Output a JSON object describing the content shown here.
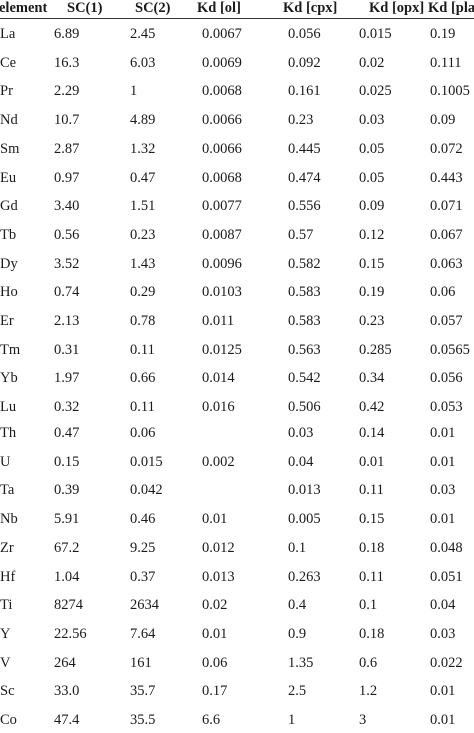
{
  "table": {
    "headers": [
      "element",
      "SC(1)",
      "SC(2)",
      "Kd [ol]",
      "Kd [cpx]",
      "Kd [opx]",
      "Kd [plag]"
    ],
    "group1": [
      [
        "La",
        "6.89",
        "2.45",
        "0.0067",
        "0.056",
        "0.015",
        "0.19"
      ],
      [
        "Ce",
        "16.3",
        "6.03",
        "0.0069",
        "0.092",
        "0.02",
        "0.111"
      ],
      [
        "Pr",
        "2.29",
        "1",
        "0.0068",
        "0.161",
        "0.025",
        "0.1005"
      ],
      [
        "Nd",
        "10.7",
        "4.89",
        "0.0066",
        "0.23",
        "0.03",
        "0.09"
      ],
      [
        "Sm",
        "2.87",
        "1.32",
        "0.0066",
        "0.445",
        "0.05",
        "0.072"
      ],
      [
        "Eu",
        "0.97",
        "0.47",
        "0.0068",
        "0.474",
        "0.05",
        "0.443"
      ],
      [
        "Gd",
        "3.40",
        "1.51",
        "0.0077",
        "0.556",
        "0.09",
        "0.071"
      ],
      [
        "Tb",
        "0.56",
        "0.23",
        "0.0087",
        "0.57",
        "0.12",
        "0.067"
      ],
      [
        "Dy",
        "3.52",
        "1.43",
        "0.0096",
        "0.582",
        "0.15",
        "0.063"
      ],
      [
        "Ho",
        "0.74",
        "0.29",
        "0.0103",
        "0.583",
        "0.19",
        "0.06"
      ],
      [
        "Er",
        "2.13",
        "0.78",
        "0.011",
        "0.583",
        "0.23",
        "0.057"
      ],
      [
        "Tm",
        "0.31",
        "0.11",
        "0.0125",
        "0.563",
        "0.285",
        "0.0565"
      ],
      [
        "Yb",
        "1.97",
        "0.66",
        "0.014",
        "0.542",
        "0.34",
        "0.056"
      ],
      [
        "Lu",
        "0.32",
        "0.11",
        "0.016",
        "0.506",
        "0.42",
        "0.053"
      ]
    ],
    "group2": [
      [
        "Th",
        "0.47",
        "0.06",
        "",
        "0.03",
        "0.14",
        "0.01"
      ],
      [
        "U",
        "0.15",
        "0.015",
        "0.002",
        "0.04",
        "0.01",
        "0.01"
      ],
      [
        "Ta",
        "0.39",
        "0.042",
        "",
        "0.013",
        "0.11",
        "0.03"
      ],
      [
        "Nb",
        "5.91",
        "0.46",
        "0.01",
        "0.005",
        "0.15",
        "0.01"
      ],
      [
        "Zr",
        "67.2",
        "9.25",
        "0.012",
        "0.1",
        "0.18",
        "0.048"
      ],
      [
        "Hf",
        "1.04",
        "0.37",
        "0.013",
        "0.263",
        "0.11",
        "0.051"
      ],
      [
        "Ti",
        "8274",
        "2634",
        "0.02",
        "0.4",
        "0.1",
        "0.04"
      ],
      [
        "Y",
        "22.56",
        "7.64",
        "0.01",
        "0.9",
        "0.18",
        "0.03"
      ],
      [
        "V",
        "264",
        "161",
        "0.06",
        "1.35",
        "0.6",
        "0.022"
      ],
      [
        "Sc",
        "33.0",
        "35.7",
        "0.17",
        "2.5",
        "1.2",
        "0.01"
      ],
      [
        "Co",
        "47.4",
        "35.5",
        "6.6",
        "1",
        "3",
        "0.01"
      ]
    ]
  }
}
